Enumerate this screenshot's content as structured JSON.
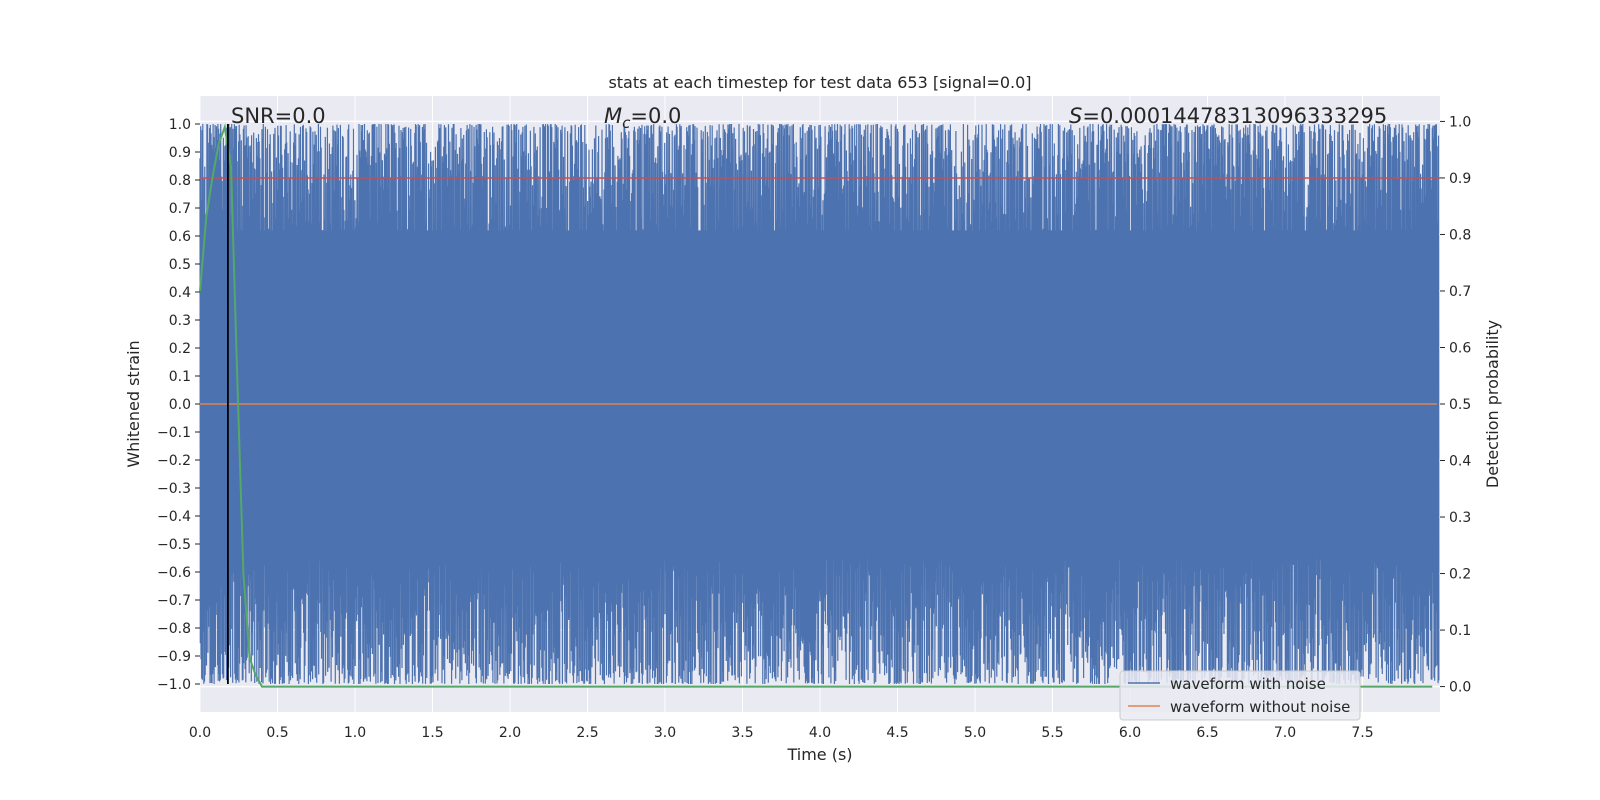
{
  "chart_data": {
    "type": "line",
    "title": "stats at each timestep for test data 653 [signal=0.0]",
    "xlabel": "Time (s)",
    "ylabel": "Whitened strain",
    "y2label": "Detection probability",
    "xlim": [
      0.0,
      8.0
    ],
    "ylim": [
      -1.1,
      1.1
    ],
    "y2lim": [
      -0.045,
      1.045
    ],
    "xticks": [
      "0.0",
      "0.5",
      "1.0",
      "1.5",
      "2.0",
      "2.5",
      "3.0",
      "3.5",
      "4.0",
      "4.5",
      "5.0",
      "5.5",
      "6.0",
      "6.5",
      "7.0",
      "7.5"
    ],
    "yticks": [
      "1.0",
      "0.9",
      "0.8",
      "0.7",
      "0.6",
      "0.5",
      "0.4",
      "0.3",
      "0.2",
      "0.1",
      "0.0",
      "−0.1",
      "−0.2",
      "−0.3",
      "−0.4",
      "−0.5",
      "−0.6",
      "−0.7",
      "−0.8",
      "−0.9",
      "−1.0"
    ],
    "y2ticks": [
      "1.0",
      "0.9",
      "0.8",
      "0.7",
      "0.6",
      "0.5",
      "0.4",
      "0.3",
      "0.2",
      "0.1",
      "0.0"
    ],
    "annotations": {
      "snr": "SNR=0.0",
      "mc_symbol": "M",
      "mc_sub": "c",
      "mc_value": "=0.0",
      "s_symbol": "S",
      "s_value": "=0.00014478313096333295"
    },
    "legend": {
      "placement": "lower-right",
      "entries": [
        "waveform with noise",
        "waveform without noise"
      ]
    },
    "threshold": {
      "value": 0.9,
      "axis": "right",
      "color": "#c44e52"
    },
    "marker_line": {
      "x": 0.18,
      "color": "#000000"
    },
    "series": [
      {
        "name": "waveform with noise",
        "color": "#4c72b0",
        "axis": "left",
        "description_range": [
          -1.0,
          1.0
        ]
      },
      {
        "name": "waveform without noise",
        "color": "#dd8452",
        "axis": "left",
        "x": [
          0.0,
          7.98
        ],
        "y": [
          0.0,
          0.0
        ]
      },
      {
        "color": "#55a868",
        "axis": "right",
        "x": [
          0.0,
          0.04,
          0.08,
          0.12,
          0.16,
          0.2,
          0.24,
          0.28,
          0.32,
          0.36,
          0.4,
          0.5,
          1.0,
          2.0,
          3.0,
          4.0,
          5.0,
          6.0,
          7.0,
          7.95
        ],
        "y": [
          0.7,
          0.83,
          0.9,
          0.96,
          0.99,
          0.92,
          0.55,
          0.2,
          0.05,
          0.02,
          0.0,
          0.0,
          0.0,
          0.0,
          0.0,
          0.0,
          0.0,
          0.0,
          0.0,
          0.0
        ]
      }
    ],
    "grid": true,
    "colors": {
      "background": "#eaeaf2",
      "grid": "#ffffff"
    }
  }
}
